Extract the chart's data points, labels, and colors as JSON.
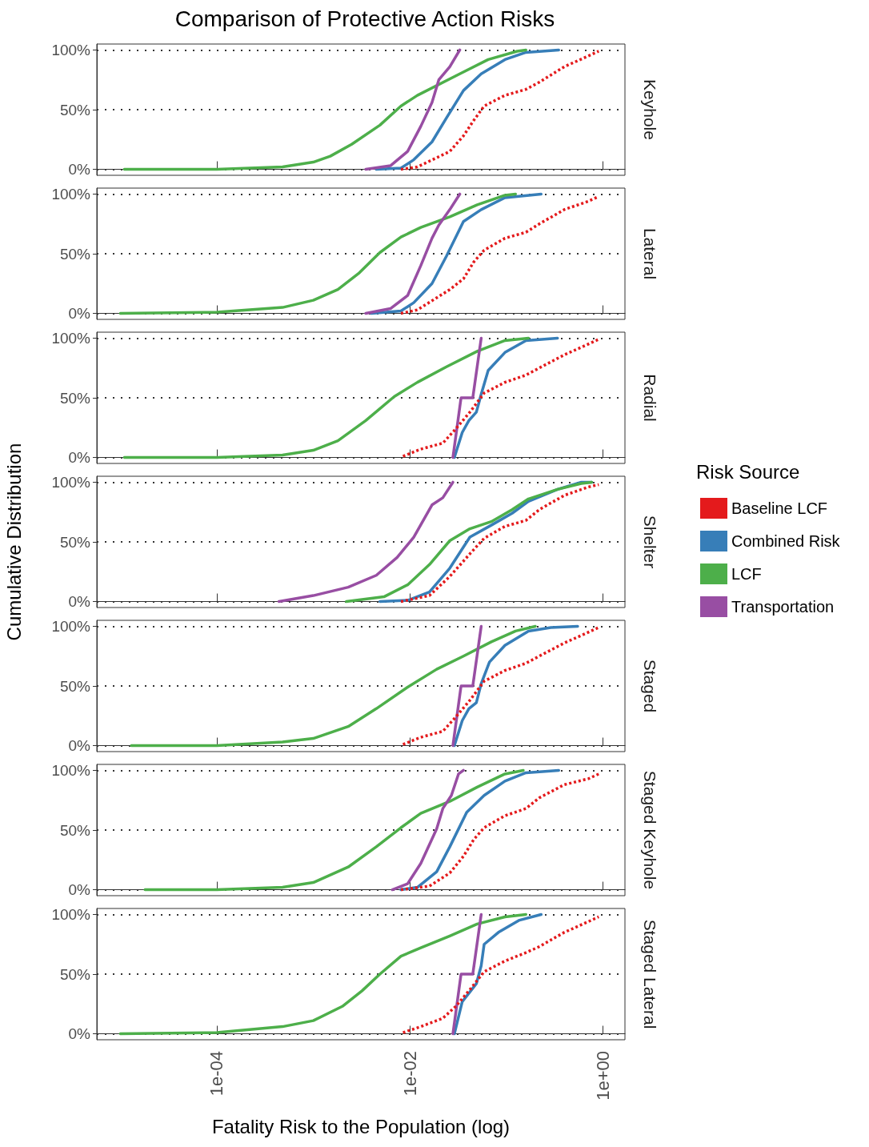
{
  "chart_data": [
    {
      "type": "line",
      "title": "Comparison of Protective Action Risks",
      "y2label": "Keyhole",
      "log": "x",
      "xlim": [
        5.7e-06,
        1.7
      ],
      "xticks": [
        {
          "value": 0.0001,
          "label": null
        },
        {
          "value": 0.01,
          "label": null
        },
        {
          "value": 1,
          "label": null
        }
      ],
      "ylim": [
        -5,
        105
      ],
      "yticks": [
        {
          "value": 0,
          "label": "0%"
        },
        {
          "value": 50,
          "label": "50%"
        },
        {
          "value": 100,
          "label": "100%"
        }
      ],
      "grid": "y",
      "marker": "none",
      "tick_labels": "y",
      "series": [
        {
          "color": "#e41a1c",
          "line_style": "dotted",
          "x": [
            0.0081,
            0.012,
            0.026,
            0.036,
            0.046,
            0.059,
            0.097,
            0.16,
            0.22,
            0.4,
            0.71,
            0.91
          ],
          "values": [
            0,
            2,
            15,
            28,
            41,
            53,
            62,
            67,
            73,
            86,
            95,
            99
          ]
        },
        {
          "color": "#377eb8",
          "line_style": "solid",
          "x": [
            0.0045,
            0.0081,
            0.011,
            0.017,
            0.024,
            0.036,
            0.055,
            0.097,
            0.16,
            0.35
          ],
          "values": [
            0,
            1,
            8,
            23,
            43,
            66,
            80,
            92,
            98,
            100
          ]
        },
        {
          "color": "#4daf4a",
          "line_style": "solid",
          "x": [
            1.1e-05,
            0.0001,
            0.00048,
            0.001,
            0.0015,
            0.0025,
            0.0049,
            0.0081,
            0.012,
            0.033,
            0.065,
            0.13,
            0.16
          ],
          "values": [
            0,
            0,
            2,
            6,
            11,
            21,
            37,
            53,
            62,
            80,
            92,
            99,
            100
          ]
        },
        {
          "color": "#984ea3",
          "line_style": "solid",
          "x": [
            0.0035,
            0.0063,
            0.0095,
            0.013,
            0.017,
            0.02,
            0.026,
            0.033
          ],
          "values": [
            0,
            3,
            15,
            36,
            56,
            75,
            86,
            100
          ]
        }
      ]
    },
    {
      "type": "line",
      "y2label": "Lateral",
      "log": "x",
      "xlim": [
        5.7e-06,
        1.7
      ],
      "xticks": [
        {
          "value": 0.0001,
          "label": null
        },
        {
          "value": 0.01,
          "label": null
        },
        {
          "value": 1,
          "label": null
        }
      ],
      "ylim": [
        -5,
        105
      ],
      "yticks": [
        {
          "value": 0,
          "label": "0%"
        },
        {
          "value": 50,
          "label": "50%"
        },
        {
          "value": 100,
          "label": "100%"
        }
      ],
      "grid": "y",
      "marker": "none",
      "tick_labels": "y",
      "series": [
        {
          "color": "#e41a1c",
          "line_style": "dotted",
          "x": [
            0.0081,
            0.012,
            0.026,
            0.036,
            0.046,
            0.059,
            0.097,
            0.16,
            0.22,
            0.4,
            0.71,
            0.91
          ],
          "values": [
            0,
            3,
            20,
            29,
            43,
            53,
            63,
            68,
            75,
            87,
            94,
            98
          ]
        },
        {
          "color": "#377eb8",
          "line_style": "solid",
          "x": [
            0.004,
            0.0081,
            0.011,
            0.017,
            0.024,
            0.036,
            0.055,
            0.097,
            0.23
          ],
          "values": [
            0,
            2,
            9,
            25,
            48,
            77,
            87,
            97,
            100
          ]
        },
        {
          "color": "#4daf4a",
          "line_style": "solid",
          "x": [
            1e-05,
            0.0001,
            0.00048,
            0.001,
            0.0018,
            0.003,
            0.0049,
            0.0081,
            0.013,
            0.026,
            0.05,
            0.097,
            0.125
          ],
          "values": [
            0,
            1,
            5,
            11,
            20,
            34,
            51,
            64,
            72,
            81,
            91,
            99,
            100
          ]
        },
        {
          "color": "#984ea3",
          "line_style": "solid",
          "x": [
            0.0035,
            0.0063,
            0.0095,
            0.013,
            0.017,
            0.02,
            0.026,
            0.033
          ],
          "values": [
            0,
            4,
            15,
            40,
            63,
            74,
            87,
            100
          ]
        }
      ]
    },
    {
      "type": "line",
      "y2label": "Radial",
      "log": "x",
      "xlim": [
        5.7e-06,
        1.7
      ],
      "xticks": [
        {
          "value": 0.0001,
          "label": null
        },
        {
          "value": 0.01,
          "label": null
        },
        {
          "value": 1,
          "label": null
        }
      ],
      "ylim": [
        -5,
        105
      ],
      "yticks": [
        {
          "value": 0,
          "label": "0%"
        },
        {
          "value": 50,
          "label": "50%"
        },
        {
          "value": 100,
          "label": "100%"
        }
      ],
      "grid": "y",
      "marker": "none",
      "tick_labels": "y",
      "series": [
        {
          "color": "#e41a1c",
          "line_style": "dotted",
          "x": [
            0.0085,
            0.013,
            0.022,
            0.03,
            0.042,
            0.059,
            0.097,
            0.16,
            0.22,
            0.4,
            0.71,
            0.91
          ],
          "values": [
            1,
            7,
            12,
            24,
            38,
            54,
            63,
            69,
            75,
            86,
            95,
            99
          ]
        },
        {
          "color": "#377eb8",
          "line_style": "solid",
          "x": [
            0.029,
            0.035,
            0.041,
            0.049,
            0.055,
            0.065,
            0.097,
            0.16,
            0.34
          ],
          "values": [
            0,
            21,
            31,
            38,
            53,
            73,
            88,
            98,
            100
          ]
        },
        {
          "color": "#4daf4a",
          "line_style": "solid",
          "x": [
            1.1e-05,
            0.0001,
            0.00048,
            0.001,
            0.0018,
            0.0035,
            0.0069,
            0.012,
            0.024,
            0.05,
            0.097,
            0.17
          ],
          "values": [
            0,
            0,
            2,
            6,
            14,
            31,
            51,
            63,
            76,
            89,
            98,
            100
          ]
        },
        {
          "color": "#984ea3",
          "line_style": "solid",
          "x": [
            0.028,
            0.034,
            0.045,
            0.055
          ],
          "values": [
            0,
            50,
            50,
            100
          ]
        }
      ]
    },
    {
      "type": "line",
      "y2label": "Shelter",
      "ylabel": "Cumulative Distribution",
      "legend": "right",
      "legend_title": "Risk Source",
      "log": "x",
      "xlim": [
        5.7e-06,
        1.7
      ],
      "xticks": [
        {
          "value": 0.0001,
          "label": null
        },
        {
          "value": 0.01,
          "label": null
        },
        {
          "value": 1,
          "label": null
        }
      ],
      "ylim": [
        -5,
        105
      ],
      "yticks": [
        {
          "value": 0,
          "label": "0%"
        },
        {
          "value": 50,
          "label": "50%"
        },
        {
          "value": 100,
          "label": "100%"
        }
      ],
      "grid": "y",
      "marker": "none",
      "tick_labels": "y",
      "series": [
        {
          "name": "Baseline LCF",
          "color": "#e41a1c",
          "line_style": "dotted",
          "x": [
            0.0081,
            0.016,
            0.026,
            0.042,
            0.059,
            0.097,
            0.16,
            0.22,
            0.4,
            0.71,
            0.91
          ],
          "values": [
            0,
            5,
            21,
            40,
            53,
            63,
            68,
            77,
            89,
            96,
            98
          ]
        },
        {
          "name": "Combined Risk",
          "color": "#377eb8",
          "line_style": "solid",
          "x": [
            0.0049,
            0.0095,
            0.016,
            0.026,
            0.042,
            0.07,
            0.115,
            0.17,
            0.34,
            0.6,
            0.77
          ],
          "values": [
            0,
            1,
            8,
            28,
            54,
            64,
            74,
            84,
            94,
            100,
            100
          ]
        },
        {
          "name": "LCF",
          "color": "#4daf4a",
          "line_style": "solid",
          "x": [
            0.0022,
            0.0054,
            0.0095,
            0.016,
            0.026,
            0.042,
            0.07,
            0.115,
            0.17,
            0.34,
            0.6,
            0.77
          ],
          "values": [
            0,
            4,
            14,
            31,
            51,
            61,
            67,
            77,
            86,
            94,
            99,
            100
          ]
        },
        {
          "name": "Transportation",
          "color": "#984ea3",
          "line_style": "solid",
          "x": [
            0.00044,
            0.001,
            0.0023,
            0.0045,
            0.0074,
            0.011,
            0.017,
            0.022,
            0.028
          ],
          "values": [
            0,
            5,
            12,
            22,
            37,
            54,
            81,
            87,
            100
          ]
        }
      ]
    },
    {
      "type": "line",
      "y2label": "Staged",
      "log": "x",
      "xlim": [
        5.7e-06,
        1.7
      ],
      "xticks": [
        {
          "value": 0.0001,
          "label": null
        },
        {
          "value": 0.01,
          "label": null
        },
        {
          "value": 1,
          "label": null
        }
      ],
      "ylim": [
        -5,
        105
      ],
      "yticks": [
        {
          "value": 0,
          "label": "0%"
        },
        {
          "value": 50,
          "label": "50%"
        },
        {
          "value": 100,
          "label": "100%"
        }
      ],
      "grid": "y",
      "marker": "none",
      "tick_labels": "y",
      "series": [
        {
          "color": "#e41a1c",
          "line_style": "dotted",
          "x": [
            0.0085,
            0.013,
            0.022,
            0.03,
            0.042,
            0.059,
            0.097,
            0.16,
            0.22,
            0.4,
            0.71,
            0.91
          ],
          "values": [
            1,
            7,
            12,
            24,
            38,
            54,
            63,
            69,
            75,
            86,
            95,
            99
          ]
        },
        {
          "color": "#377eb8",
          "line_style": "solid",
          "x": [
            0.029,
            0.035,
            0.041,
            0.049,
            0.055,
            0.067,
            0.097,
            0.17,
            0.29,
            0.55
          ],
          "values": [
            0,
            21,
            31,
            36,
            52,
            70,
            84,
            96,
            99,
            100
          ]
        },
        {
          "color": "#4daf4a",
          "line_style": "solid",
          "x": [
            1.3e-05,
            0.0001,
            0.00048,
            0.001,
            0.0023,
            0.0045,
            0.0095,
            0.019,
            0.036,
            0.07,
            0.125,
            0.2
          ],
          "values": [
            0,
            0,
            3,
            6,
            16,
            31,
            49,
            64,
            75,
            87,
            96,
            100
          ]
        },
        {
          "color": "#984ea3",
          "line_style": "solid",
          "x": [
            0.028,
            0.034,
            0.045,
            0.055
          ],
          "values": [
            0,
            50,
            50,
            100
          ]
        }
      ]
    },
    {
      "type": "line",
      "y2label": "Staged Keyhole",
      "log": "x",
      "xlim": [
        5.7e-06,
        1.7
      ],
      "xticks": [
        {
          "value": 0.0001,
          "label": null
        },
        {
          "value": 0.01,
          "label": null
        },
        {
          "value": 1,
          "label": null
        }
      ],
      "ylim": [
        -5,
        105
      ],
      "yticks": [
        {
          "value": 0,
          "label": "0%"
        },
        {
          "value": 50,
          "label": "50%"
        },
        {
          "value": 100,
          "label": "100%"
        }
      ],
      "grid": "y",
      "marker": "none",
      "tick_labels": "y",
      "series": [
        {
          "color": "#e41a1c",
          "line_style": "dotted",
          "x": [
            0.0081,
            0.016,
            0.026,
            0.036,
            0.046,
            0.059,
            0.097,
            0.16,
            0.22,
            0.4,
            0.71,
            0.91
          ],
          "values": [
            0,
            3,
            14,
            28,
            42,
            52,
            62,
            68,
            77,
            88,
            93,
            97
          ]
        },
        {
          "color": "#377eb8",
          "line_style": "solid",
          "x": [
            0.0081,
            0.012,
            0.019,
            0.026,
            0.039,
            0.059,
            0.097,
            0.16,
            0.35
          ],
          "values": [
            0,
            2,
            15,
            36,
            65,
            79,
            91,
            98,
            100
          ]
        },
        {
          "color": "#4daf4a",
          "line_style": "solid",
          "x": [
            1.8e-05,
            0.0001,
            0.00048,
            0.001,
            0.0023,
            0.0045,
            0.0081,
            0.013,
            0.026,
            0.05,
            0.097,
            0.15
          ],
          "values": [
            0,
            0,
            2,
            6,
            19,
            36,
            52,
            64,
            74,
            86,
            97,
            100
          ]
        },
        {
          "color": "#984ea3",
          "line_style": "solid",
          "x": [
            0.0066,
            0.0095,
            0.013,
            0.019,
            0.022,
            0.027,
            0.032,
            0.036
          ],
          "values": [
            0,
            5,
            22,
            51,
            68,
            79,
            97,
            100
          ]
        }
      ]
    },
    {
      "type": "line",
      "y2label": "Staged Lateral",
      "xlabel": "Fatality Risk to the Population (log)",
      "log": "x",
      "xlim": [
        5.7e-06,
        1.7
      ],
      "xticks": [
        {
          "value": 0.0001,
          "label": "1e-04"
        },
        {
          "value": 0.01,
          "label": "1e-02"
        },
        {
          "value": 1,
          "label": "1e+00"
        }
      ],
      "ylim": [
        -5,
        105
      ],
      "yticks": [
        {
          "value": 0,
          "label": "0%"
        },
        {
          "value": 50,
          "label": "50%"
        },
        {
          "value": 100,
          "label": "100%"
        }
      ],
      "grid": "y",
      "marker": "none",
      "series": [
        {
          "color": "#e41a1c",
          "line_style": "dotted",
          "x": [
            0.0085,
            0.013,
            0.022,
            0.03,
            0.042,
            0.059,
            0.097,
            0.16,
            0.22,
            0.4,
            0.71,
            0.91
          ],
          "values": [
            1,
            6,
            13,
            23,
            37,
            52,
            61,
            68,
            73,
            85,
            94,
            98
          ]
        },
        {
          "color": "#377eb8",
          "line_style": "solid",
          "x": [
            0.029,
            0.035,
            0.041,
            0.049,
            0.055,
            0.059,
            0.083,
            0.135,
            0.23
          ],
          "values": [
            0,
            27,
            34,
            42,
            57,
            75,
            85,
            95,
            100
          ]
        },
        {
          "color": "#4daf4a",
          "line_style": "solid",
          "x": [
            1e-05,
            0.0001,
            0.00048,
            0.001,
            0.002,
            0.0032,
            0.0049,
            0.0081,
            0.013,
            0.026,
            0.05,
            0.097,
            0.16
          ],
          "values": [
            0,
            1,
            6,
            11,
            23,
            36,
            50,
            65,
            72,
            82,
            92,
            98,
            100
          ]
        },
        {
          "color": "#984ea3",
          "line_style": "solid",
          "x": [
            0.028,
            0.034,
            0.045,
            0.055
          ],
          "values": [
            0,
            50,
            50,
            100
          ]
        }
      ]
    }
  ]
}
